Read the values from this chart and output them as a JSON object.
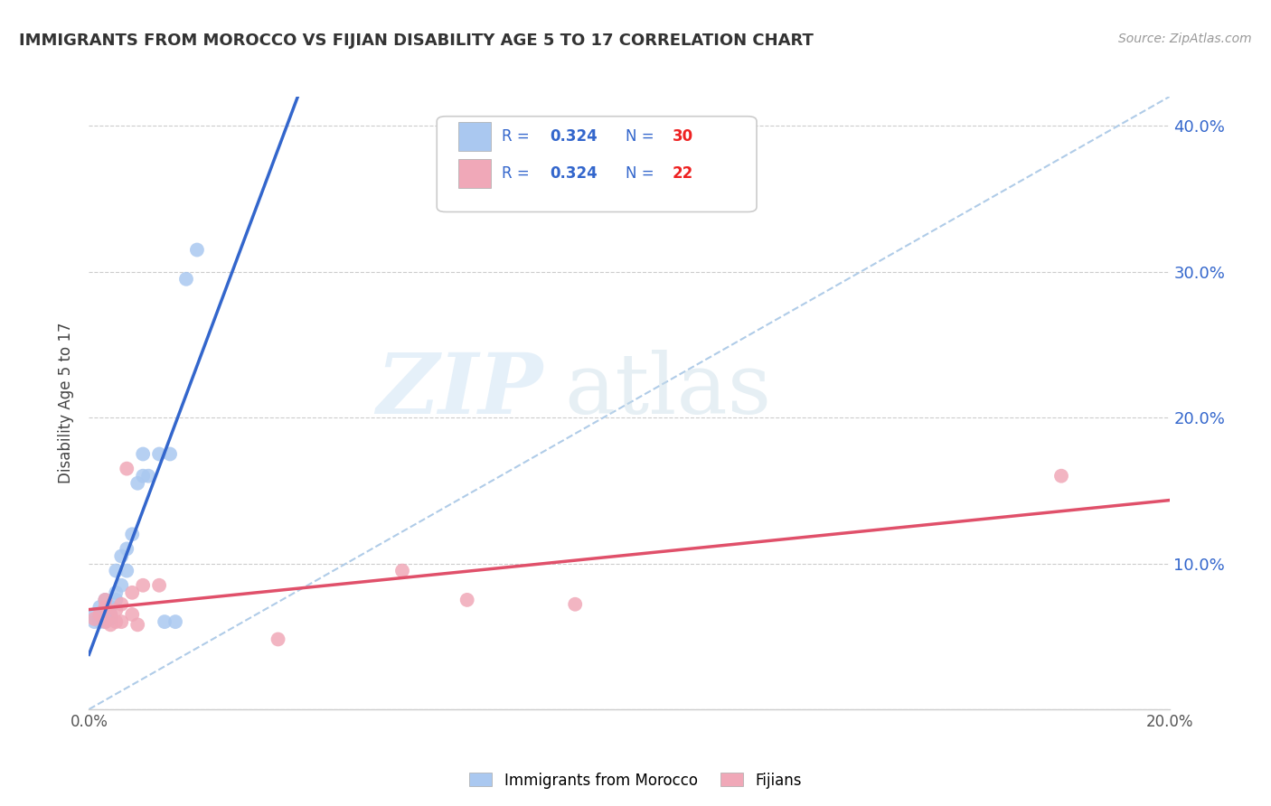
{
  "title": "IMMIGRANTS FROM MOROCCO VS FIJIAN DISABILITY AGE 5 TO 17 CORRELATION CHART",
  "source": "Source: ZipAtlas.com",
  "ylabel": "Disability Age 5 to 17",
  "xlim": [
    0.0,
    0.2
  ],
  "ylim": [
    0.0,
    0.42
  ],
  "xticks": [
    0.0,
    0.02,
    0.04,
    0.06,
    0.08,
    0.1,
    0.12,
    0.14,
    0.16,
    0.18,
    0.2
  ],
  "yticks": [
    0.0,
    0.1,
    0.2,
    0.3,
    0.4
  ],
  "morocco_x": [
    0.001,
    0.001,
    0.002,
    0.002,
    0.002,
    0.003,
    0.003,
    0.003,
    0.003,
    0.004,
    0.004,
    0.004,
    0.005,
    0.005,
    0.005,
    0.006,
    0.006,
    0.007,
    0.007,
    0.008,
    0.009,
    0.01,
    0.01,
    0.011,
    0.013,
    0.014,
    0.015,
    0.016,
    0.018,
    0.02
  ],
  "morocco_y": [
    0.06,
    0.065,
    0.06,
    0.062,
    0.07,
    0.06,
    0.062,
    0.068,
    0.075,
    0.062,
    0.065,
    0.07,
    0.075,
    0.08,
    0.095,
    0.085,
    0.105,
    0.095,
    0.11,
    0.12,
    0.155,
    0.16,
    0.175,
    0.16,
    0.175,
    0.06,
    0.175,
    0.06,
    0.295,
    0.315
  ],
  "fijian_x": [
    0.001,
    0.002,
    0.003,
    0.003,
    0.003,
    0.004,
    0.004,
    0.005,
    0.005,
    0.006,
    0.006,
    0.007,
    0.008,
    0.008,
    0.009,
    0.01,
    0.013,
    0.035,
    0.058,
    0.07,
    0.09,
    0.18
  ],
  "fijian_y": [
    0.062,
    0.065,
    0.06,
    0.07,
    0.075,
    0.058,
    0.065,
    0.06,
    0.068,
    0.06,
    0.072,
    0.165,
    0.065,
    0.08,
    0.058,
    0.085,
    0.085,
    0.048,
    0.095,
    0.075,
    0.072,
    0.16
  ],
  "morocco_color": "#aac8f0",
  "fijian_color": "#f0a8b8",
  "morocco_line_color": "#3366cc",
  "fijian_line_color": "#e0506a",
  "diagonal_color": "#b0cce8",
  "r_color": "#3366cc",
  "n_color": "#ee2222",
  "watermark_zip": "ZIP",
  "watermark_atlas": "atlas",
  "background_color": "#ffffff",
  "grid_color": "#cccccc"
}
